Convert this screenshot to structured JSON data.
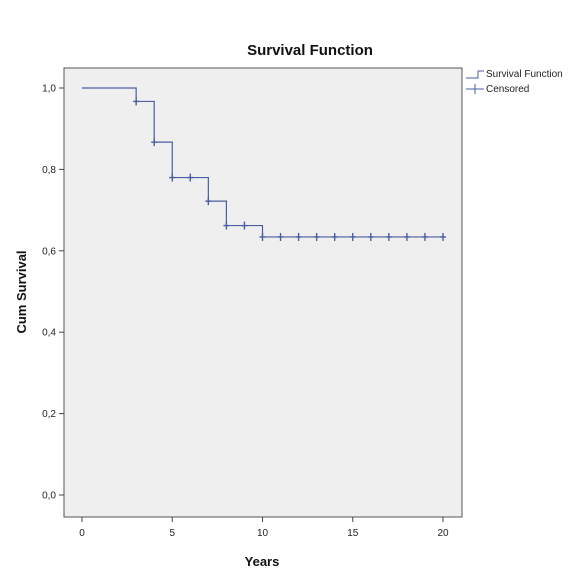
{
  "chart_data": {
    "type": "line",
    "title": "Survival Function",
    "xlabel": "Years",
    "ylabel": "Cum Survival",
    "xlim": [
      0,
      20
    ],
    "ylim": [
      0,
      1
    ],
    "xticks": [
      0,
      5,
      10,
      15,
      20
    ],
    "yticks": [
      "0,0",
      "0,2",
      "0,4",
      "0,6",
      "0,8",
      "1,0"
    ],
    "ytick_values": [
      0,
      0.2,
      0.4,
      0.6,
      0.8,
      1.0
    ],
    "grid": false,
    "legend_position": "top-right",
    "line_color": "#4a5fa0",
    "plot_background": "#efefef",
    "series": [
      {
        "name": "Survival Function",
        "style": "step",
        "x": [
          0,
          3,
          4,
          5,
          7,
          8,
          10,
          20
        ],
        "y": [
          1.0,
          0.967,
          0.867,
          0.78,
          0.722,
          0.662,
          0.634,
          0.634
        ]
      },
      {
        "name": "Censored",
        "style": "cross-marker",
        "x": [
          3,
          4,
          5,
          6,
          7,
          8,
          9,
          10,
          11,
          12,
          13,
          14,
          15,
          16,
          17,
          18,
          19,
          20
        ],
        "y": [
          0.967,
          0.867,
          0.78,
          0.78,
          0.722,
          0.662,
          0.662,
          0.634,
          0.634,
          0.634,
          0.634,
          0.634,
          0.634,
          0.634,
          0.634,
          0.634,
          0.634,
          0.634
        ]
      }
    ]
  }
}
